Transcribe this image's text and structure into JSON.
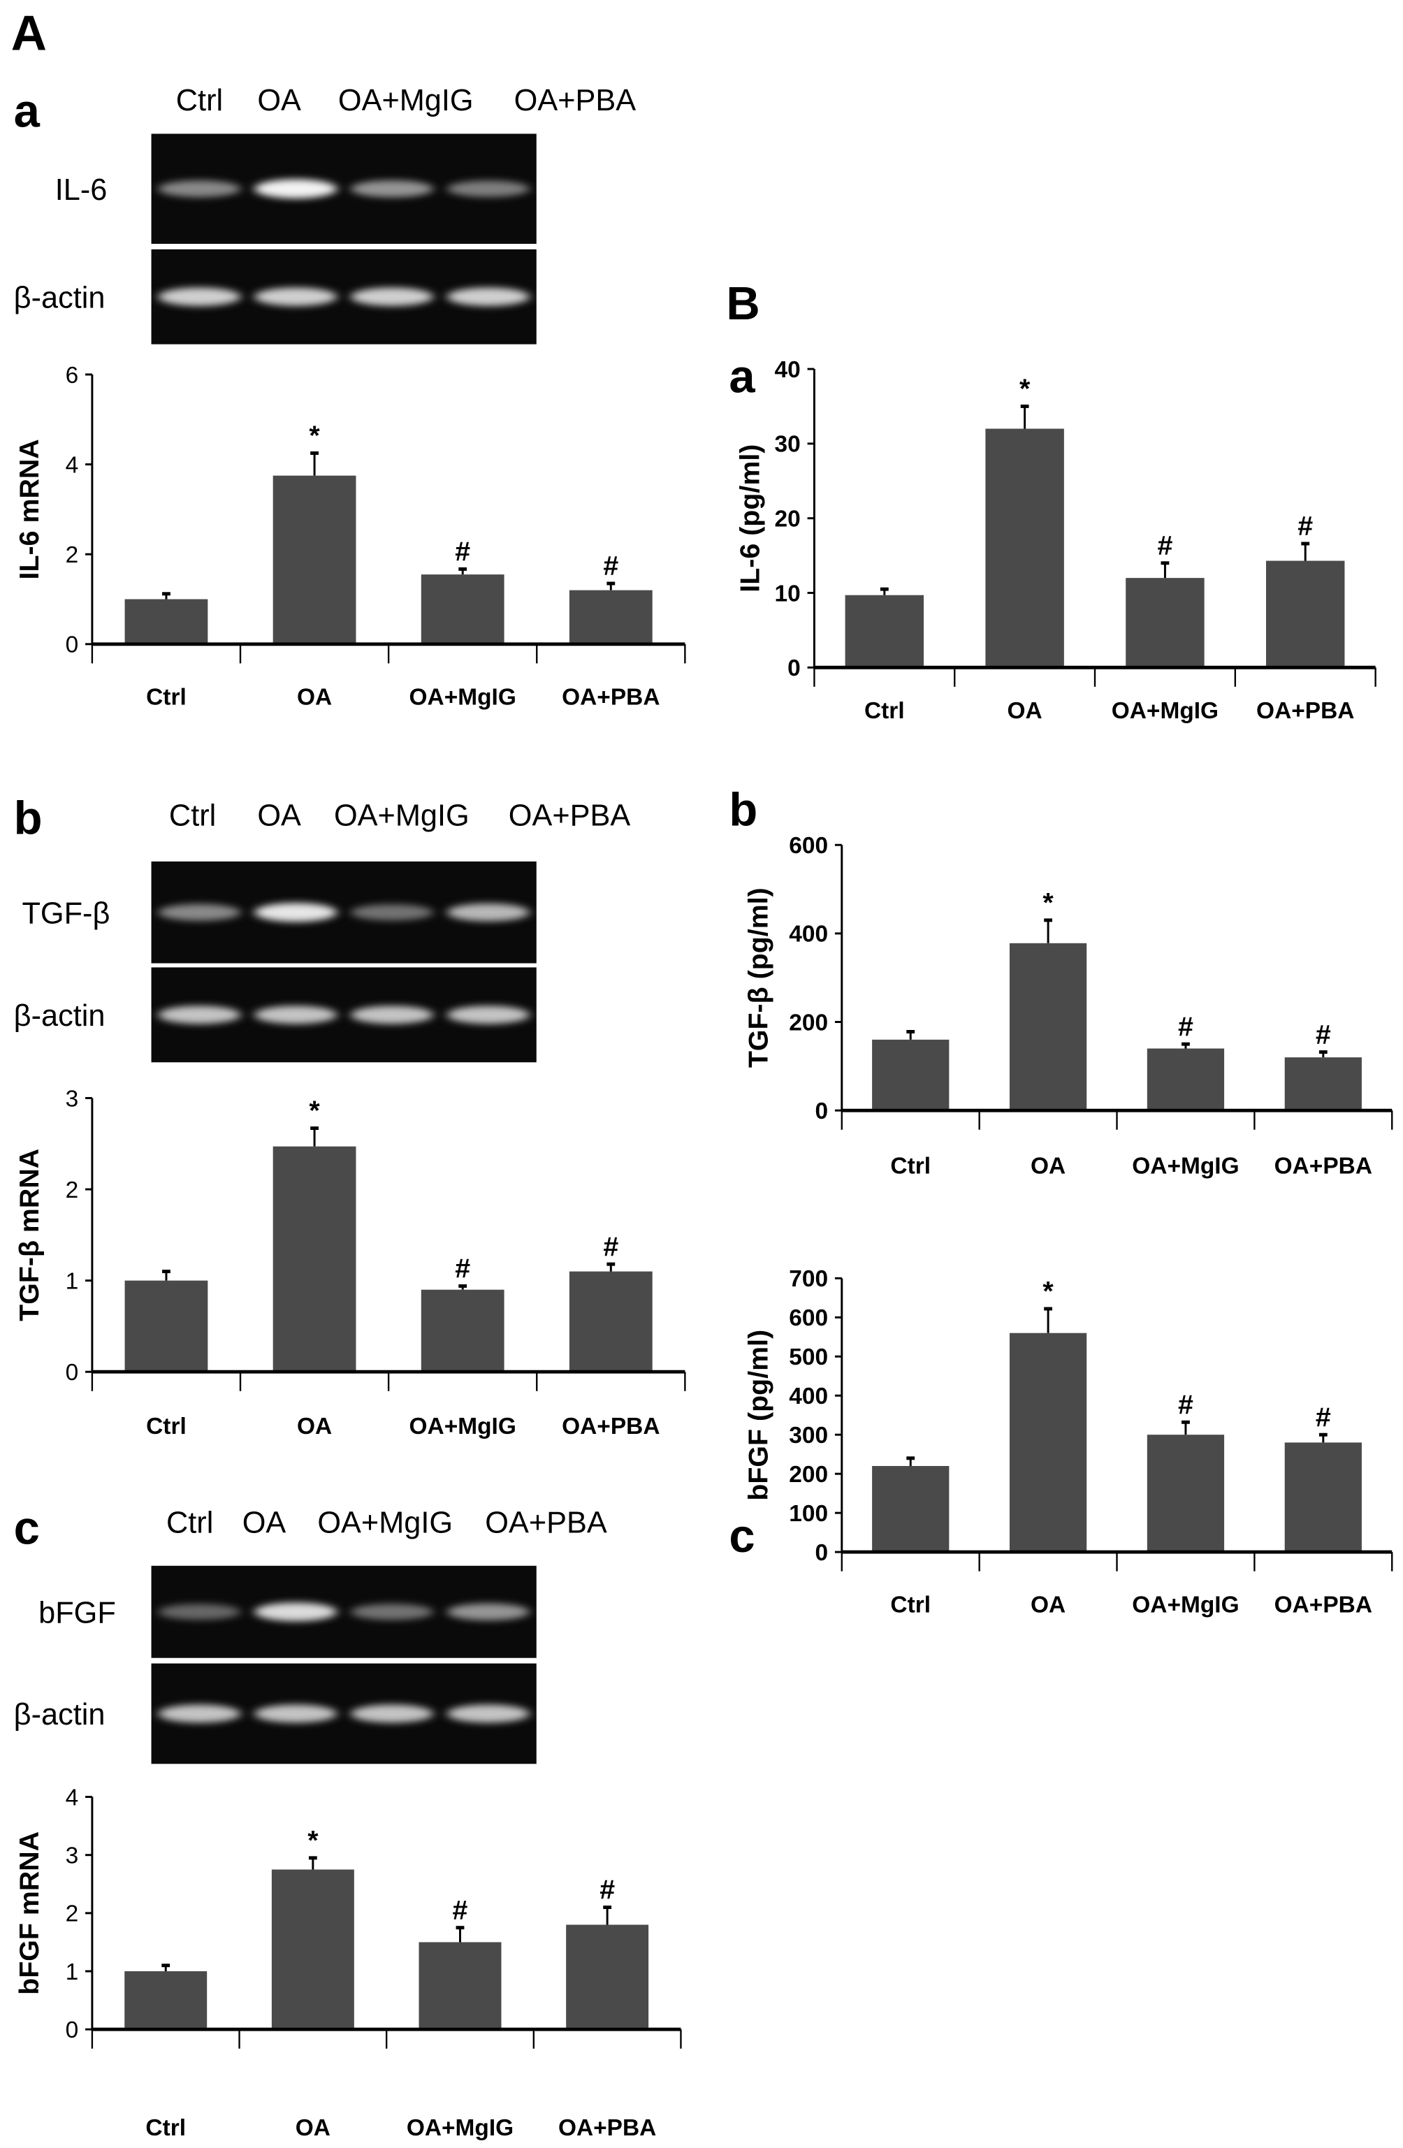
{
  "panels": {
    "A": "A",
    "B": "B"
  },
  "gels": [
    {
      "sub": "a",
      "lanes": [
        "Ctrl",
        "OA",
        "OA+MgIG",
        "OA+PBA"
      ],
      "target": "IL-6",
      "control": "β-actin",
      "target_intensity": [
        0.55,
        1.0,
        0.6,
        0.5
      ],
      "control_intensity": [
        0.85,
        0.85,
        0.85,
        0.85
      ]
    },
    {
      "sub": "b",
      "lanes": [
        "Ctrl",
        "OA",
        "OA+MgIG",
        "OA+PBA"
      ],
      "target": "TGF-β",
      "control": "β-actin",
      "target_intensity": [
        0.55,
        0.95,
        0.45,
        0.75
      ],
      "control_intensity": [
        0.8,
        0.8,
        0.8,
        0.8
      ]
    },
    {
      "sub": "c",
      "lanes": [
        "Ctrl",
        "OA",
        "OA+MgIG",
        "OA+PBA"
      ],
      "target": "bFGF",
      "control": "β-actin",
      "target_intensity": [
        0.4,
        0.9,
        0.45,
        0.6
      ],
      "control_intensity": [
        0.8,
        0.8,
        0.8,
        0.8
      ]
    }
  ],
  "chart_data": [
    {
      "id": "A-a",
      "sub": "",
      "type": "bar",
      "categories": [
        "Ctrl",
        "OA",
        "OA+MgIG",
        "OA+PBA"
      ],
      "values": [
        1.0,
        3.75,
        1.55,
        1.2
      ],
      "errors": [
        0.12,
        0.5,
        0.12,
        0.15
      ],
      "marks": [
        "",
        "*",
        "#",
        "#"
      ],
      "ylabel": "IL-6 mRNA",
      "ylim": [
        0,
        6
      ],
      "yticks": [
        "0",
        "2",
        "4",
        "6"
      ],
      "ytick_values": [
        0,
        2,
        4,
        6
      ]
    },
    {
      "id": "A-b",
      "sub": "",
      "type": "bar",
      "categories": [
        "Ctrl",
        "OA",
        "OA+MgIG",
        "OA+PBA"
      ],
      "values": [
        1.0,
        2.47,
        0.9,
        1.1
      ],
      "errors": [
        0.1,
        0.2,
        0.04,
        0.08
      ],
      "marks": [
        "",
        "*",
        "#",
        "#"
      ],
      "ylabel": "TGF-β mRNA",
      "ylim": [
        0,
        3
      ],
      "yticks": [
        "0",
        "1",
        "2",
        "3"
      ],
      "ytick_values": [
        0,
        1,
        2,
        3
      ]
    },
    {
      "id": "A-c",
      "sub": "",
      "type": "bar",
      "categories": [
        "Ctrl",
        "OA",
        "OA+MgIG",
        "OA+PBA"
      ],
      "values": [
        1.0,
        2.75,
        1.5,
        1.8
      ],
      "errors": [
        0.1,
        0.2,
        0.25,
        0.3
      ],
      "marks": [
        "",
        "*",
        "#",
        "#"
      ],
      "ylabel": "bFGF mRNA",
      "ylim": [
        0,
        4
      ],
      "yticks": [
        "0",
        "1",
        "2",
        "3",
        "4"
      ],
      "ytick_values": [
        0,
        1,
        2,
        3,
        4
      ]
    },
    {
      "id": "B-a",
      "sub": "a",
      "type": "bar",
      "categories": [
        "Ctrl",
        "OA",
        "OA+MgIG",
        "OA+PBA"
      ],
      "values": [
        9.7,
        32,
        12,
        14.3
      ],
      "errors": [
        0.8,
        3,
        2,
        2.3
      ],
      "marks": [
        "",
        "*",
        "#",
        "#"
      ],
      "ylabel": "IL-6 (pg/ml)",
      "ylim": [
        0,
        40
      ],
      "yticks": [
        "0",
        "10",
        "20",
        "30",
        "40"
      ],
      "ytick_values": [
        0,
        10,
        20,
        30,
        40
      ]
    },
    {
      "id": "B-b",
      "sub": "b",
      "type": "bar",
      "categories": [
        "Ctrl",
        "OA",
        "OA+MgIG",
        "OA+PBA"
      ],
      "values": [
        160,
        378,
        140,
        120
      ],
      "errors": [
        18,
        52,
        10,
        12
      ],
      "marks": [
        "",
        "*",
        "#",
        "#"
      ],
      "ylabel": "TGF-β (pg/ml)",
      "ylim": [
        0,
        600
      ],
      "yticks": [
        "0",
        "200",
        "400",
        "600"
      ],
      "ytick_values": [
        0,
        200,
        400,
        600
      ]
    },
    {
      "id": "B-c",
      "sub": "c",
      "type": "bar",
      "categories": [
        "Ctrl",
        "OA",
        "OA+MgIG",
        "OA+PBA"
      ],
      "values": [
        220,
        560,
        300,
        280
      ],
      "errors": [
        20,
        62,
        32,
        20
      ],
      "marks": [
        "",
        "*",
        "#",
        "#"
      ],
      "ylabel": "bFGF (pg/ml)",
      "ylim": [
        0,
        700
      ],
      "yticks": [
        "0",
        "100",
        "200",
        "300",
        "400",
        "500",
        "600",
        "700"
      ],
      "ytick_values": [
        0,
        100,
        200,
        300,
        400,
        500,
        600,
        700
      ]
    }
  ],
  "colors": {
    "bar": "#4a4a4a",
    "axis": "#000000",
    "gel": "#0a0a0a",
    "band": "#f2f2f2"
  }
}
